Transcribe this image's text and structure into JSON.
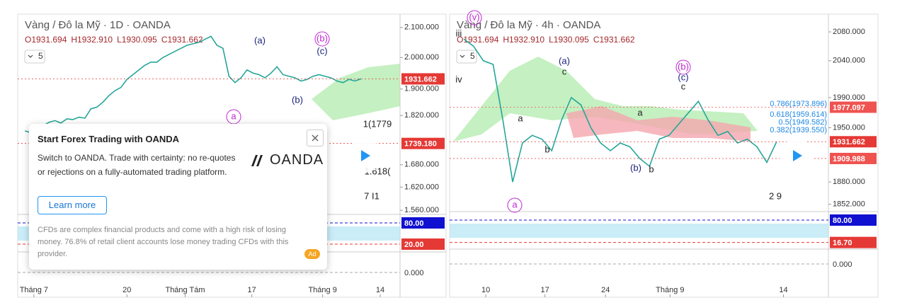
{
  "chart_data": [
    {
      "type": "line",
      "title": "Vàng / Đô la Mỹ · 1D · OANDA",
      "ohlc": [
        "O1931.694",
        "H1932.910",
        "L1930.095",
        "C1931.662"
      ],
      "interval": "5",
      "color": "#26a69a",
      "log_scale": true,
      "values": [
        1775,
        1770,
        1785,
        1790,
        1800,
        1805,
        1798,
        1810,
        1808,
        1815,
        1812,
        1840,
        1845,
        1860,
        1880,
        1895,
        1905,
        1930,
        1945,
        1960,
        1975,
        1985,
        1985,
        2000,
        2010,
        2020,
        2030,
        2040,
        2045,
        2050,
        2060,
        2070,
        2040,
        2030,
        1940,
        1920,
        1935,
        1960,
        1950,
        1945,
        1935,
        1950,
        1970,
        1945,
        1940,
        1935,
        1925,
        1930,
        1940,
        1945,
        1940,
        1935,
        1925,
        1920,
        1930,
        1925,
        1931.662
      ],
      "xlim": [
        -1.2,
        62.5
      ],
      "xticks": [
        {
          "value": 1.5,
          "label": "Tháng 7"
        },
        {
          "value": 17,
          "label": "20"
        },
        {
          "value": 26.7,
          "label": "Tháng Tám"
        },
        {
          "value": 37.8,
          "label": "17"
        },
        {
          "value": 49.6,
          "label": "Tháng 9"
        },
        {
          "value": 59.2,
          "label": "14"
        }
      ],
      "ylim": [
        1555,
        2146
      ],
      "yticks": [
        {
          "value": 2100,
          "label": "2.100.000"
        },
        {
          "value": 2000,
          "label": "2.000.000"
        },
        {
          "value": 1900,
          "label": "1.900.000"
        },
        {
          "value": 1820,
          "label": "1.820.000"
        },
        {
          "value": 1680,
          "label": "1.680.000"
        },
        {
          "value": 1620,
          "label": "1.620.000"
        },
        {
          "value": 1560,
          "label": "1.560.000"
        }
      ],
      "price_labels": [
        {
          "value": 1931.662,
          "label": "1931.662",
          "color": "#e53935"
        },
        {
          "value": 1739.18,
          "label": "1739.180",
          "color": "#e53935"
        }
      ],
      "annotations": [
        "(a)",
        "(b)",
        "(c)",
        "(b)",
        "a",
        "1(1779",
        "1.618(",
        "7 I1"
      ],
      "rsi": {
        "ylim": [
          0,
          100
        ],
        "yticks": [
          {
            "value": 80,
            "label": "80.00",
            "color": "#1010d0"
          },
          {
            "value": 20,
            "label": "20.00",
            "color": "#e53935"
          }
        ]
      },
      "macd": {
        "ylim": [
          -10,
          10
        ],
        "yticks": [
          {
            "value": 0,
            "label": "0.000"
          }
        ]
      }
    },
    {
      "type": "line",
      "title": "Vàng / Đô la Mỹ · 4h · OANDA",
      "ohlc": [
        "O1931.694",
        "H1932.910",
        "L1930.095",
        "C1931.662"
      ],
      "interval": "5",
      "color": "#26a69a",
      "log_scale": true,
      "values": [
        2070,
        2060,
        2040,
        2035,
        1960,
        1880,
        1930,
        1940,
        1935,
        1920,
        1960,
        1990,
        1980,
        1950,
        1930,
        1920,
        1930,
        1925,
        1910,
        1900,
        1935,
        1940,
        1955,
        1970,
        1985,
        1960,
        1940,
        1945,
        1930,
        1935,
        1925,
        1905,
        1931.662
      ],
      "xlim": [
        -1.45,
        37.3
      ],
      "xticks": [
        {
          "value": 2.25,
          "label": "10"
        },
        {
          "value": 8.3,
          "label": "17"
        },
        {
          "value": 14.5,
          "label": "24"
        },
        {
          "value": 21.1,
          "label": "Tháng 9"
        },
        {
          "value": 32.7,
          "label": "14"
        }
      ],
      "ylim": [
        1842,
        2105
      ],
      "yticks": [
        {
          "value": 2080,
          "label": "2080.000"
        },
        {
          "value": 2040,
          "label": "2040.000"
        },
        {
          "value": 1990,
          "label": "1990.000"
        },
        {
          "value": 1950,
          "label": "1950.000"
        },
        {
          "value": 1880,
          "label": "1880.000"
        },
        {
          "value": 1852,
          "label": "1852.000"
        }
      ],
      "price_labels": [
        {
          "value": 1977.097,
          "label": "1977.097",
          "color": "#ef5350"
        },
        {
          "value": 1931.662,
          "label": "1931.662",
          "color": "#e53935"
        },
        {
          "value": 1909.988,
          "label": "1909.988",
          "color": "#ef5350"
        }
      ],
      "annotations": [
        "(v)",
        "iii",
        "iv",
        "(a)",
        "c",
        "a",
        "b",
        "(b)",
        "(c)",
        "c",
        "a",
        "(b)",
        "b",
        "a",
        "0.786(1973.896)",
        "0.618(1959.614)",
        "0.5(1949.582)",
        "0.382(1939.550)",
        "2 9"
      ],
      "rsi": {
        "ylim": [
          0,
          100
        ],
        "yticks": [
          {
            "value": 80,
            "label": "80.00",
            "color": "#1010d0"
          },
          {
            "value": 16.7,
            "label": "16.70",
            "color": "#e53935"
          }
        ]
      },
      "macd": {
        "ylim": [
          -10,
          10
        ],
        "yticks": [
          {
            "value": 0,
            "label": "0.000"
          }
        ]
      }
    }
  ],
  "ad": {
    "title": "Start Forex Trading with OANDA",
    "body": "Switch to OANDA. Trade with certainty: no re-quotes or rejections on a fully-automated trading platform.",
    "brand": "OANDA",
    "button": "Learn more",
    "disclaimer": "CFDs are complex financial products and come with a high risk of losing money. 76.8% of retail client accounts lose money trading CFDs with this provider.",
    "badge": "Ad"
  }
}
